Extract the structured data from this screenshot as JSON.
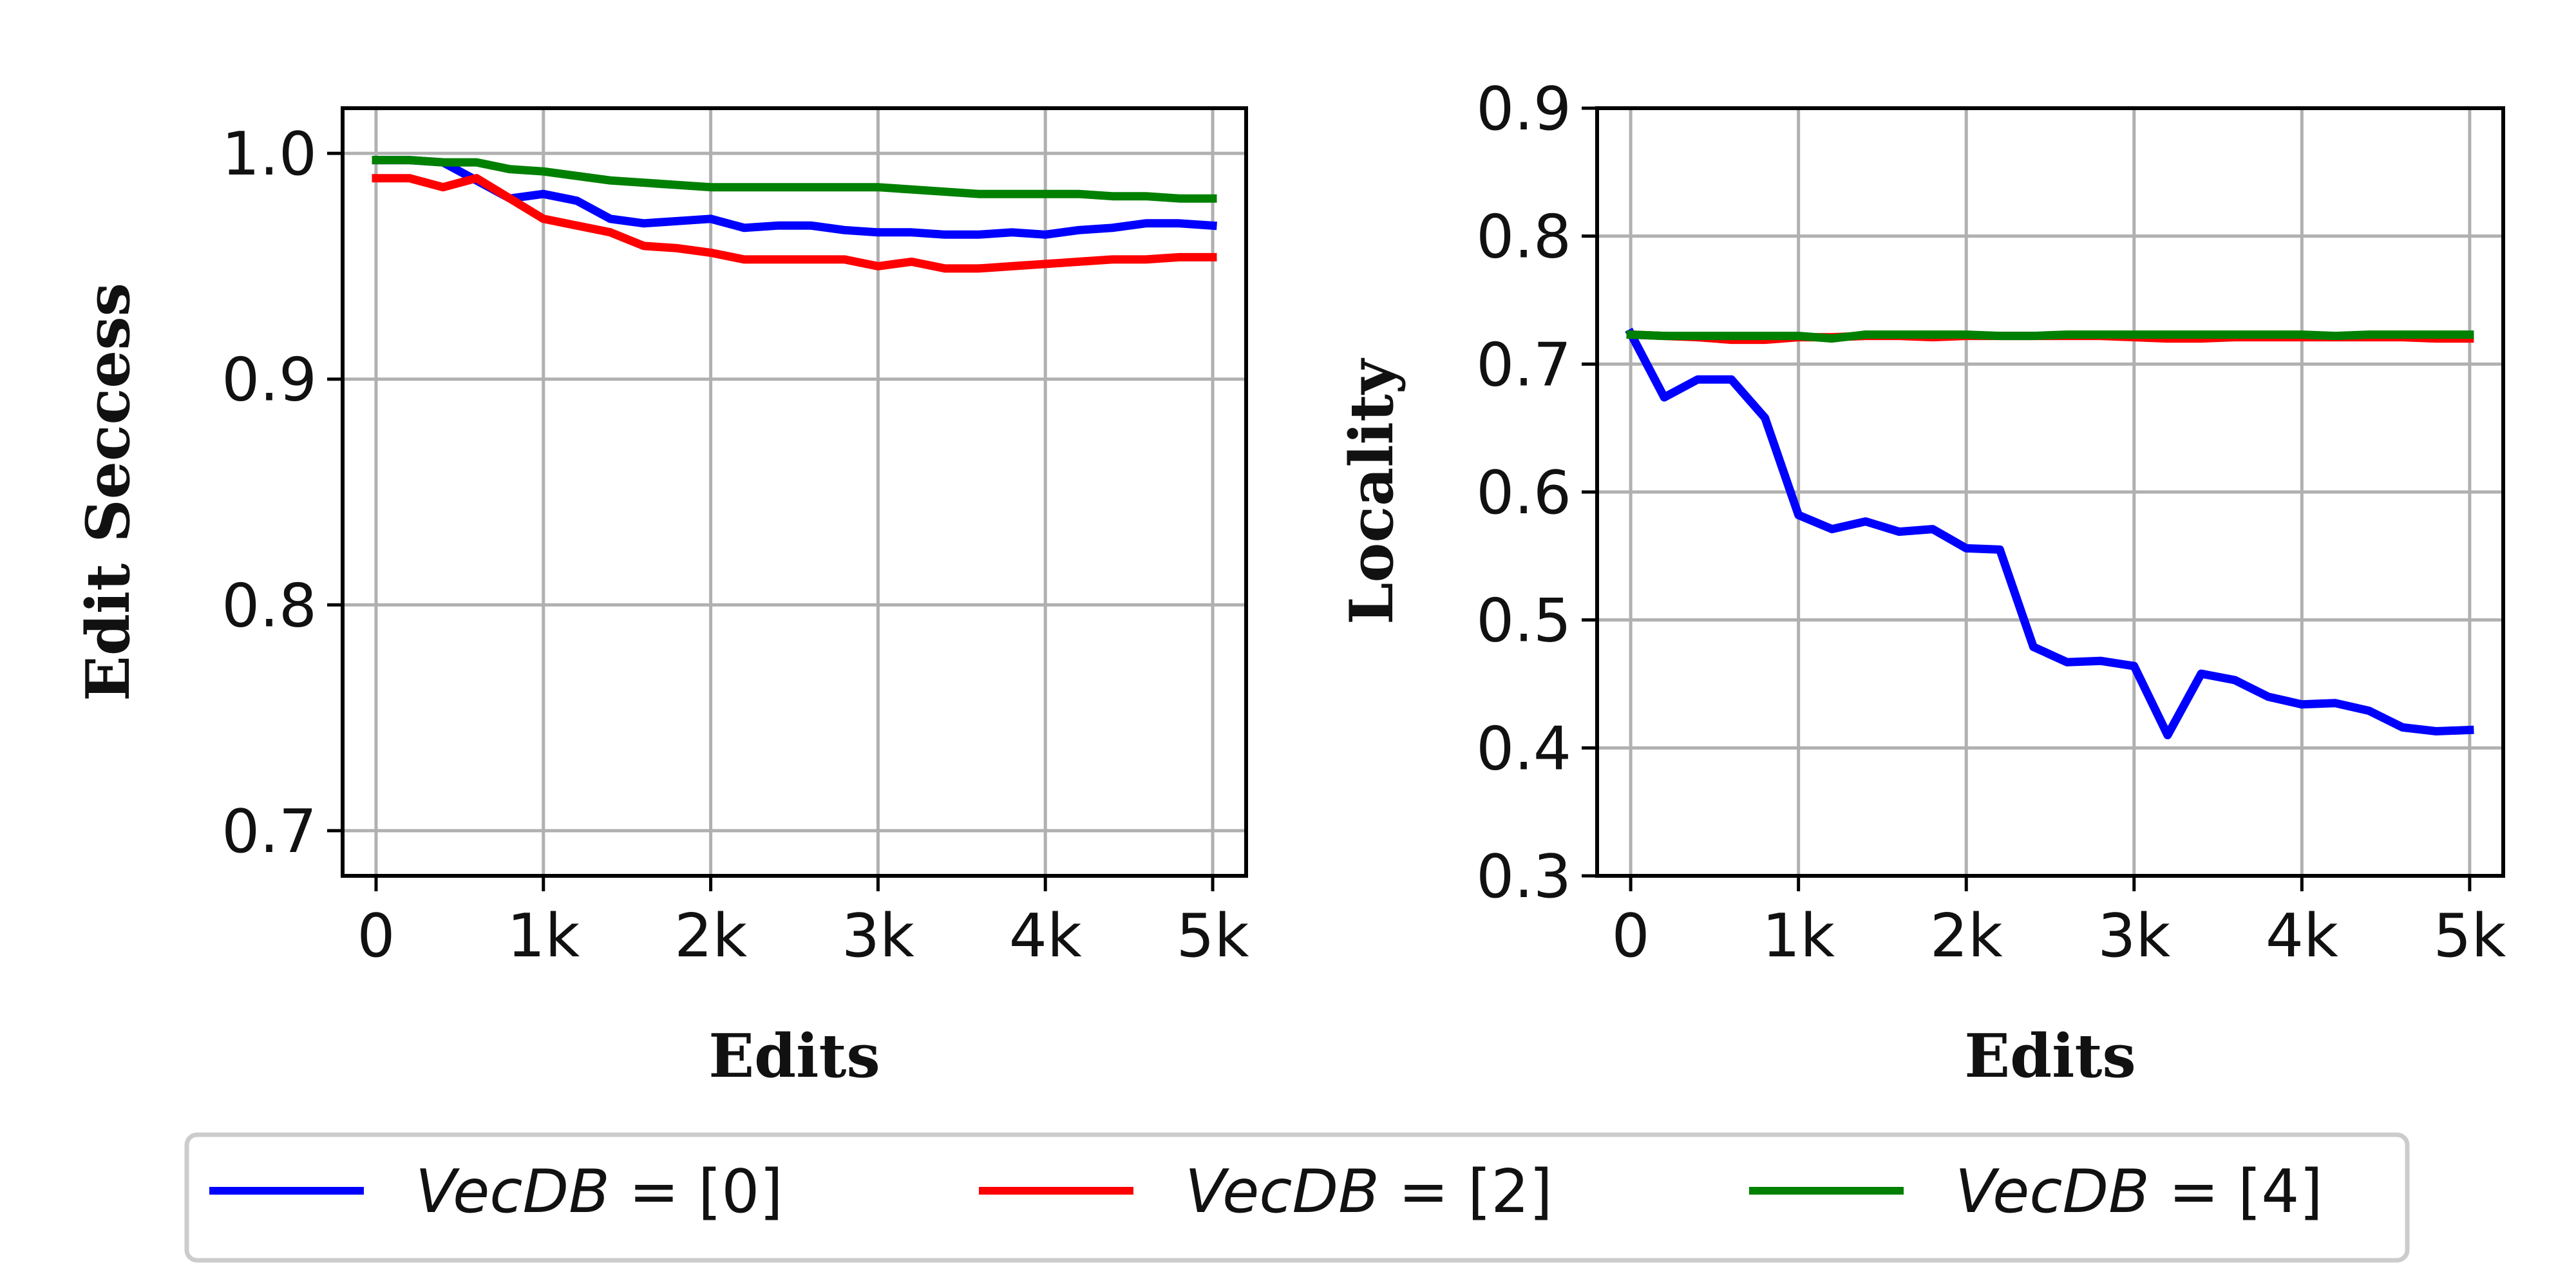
{
  "chart_data": [
    {
      "type": "line",
      "xlabel": "Edits",
      "ylabel": "Edit Seccess",
      "xlim": [
        -200,
        5200
      ],
      "ylim": [
        0.68,
        1.02
      ],
      "grid": true,
      "xticks": [
        0,
        1000,
        2000,
        3000,
        4000,
        5000
      ],
      "xtick_labels": [
        "0",
        "1k",
        "2k",
        "3k",
        "4k",
        "5k"
      ],
      "yticks": [
        0.7,
        0.8,
        0.9,
        1.0
      ],
      "ytick_labels": [
        "0.7",
        "0.8",
        "0.9",
        "1.0"
      ],
      "x": [
        0,
        200,
        400,
        600,
        800,
        1000,
        1200,
        1400,
        1600,
        1800,
        2000,
        2200,
        2400,
        2600,
        2800,
        3000,
        3200,
        3400,
        3600,
        3800,
        4000,
        4200,
        4400,
        4600,
        4800,
        5000
      ],
      "series": [
        {
          "name": "VecDB=[0]",
          "color": "#0000ff",
          "values": [
            0.997,
            0.997,
            0.996,
            0.988,
            0.98,
            0.982,
            0.979,
            0.971,
            0.969,
            0.97,
            0.971,
            0.967,
            0.968,
            0.968,
            0.966,
            0.965,
            0.965,
            0.964,
            0.964,
            0.965,
            0.964,
            0.966,
            0.967,
            0.969,
            0.969,
            0.968
          ]
        },
        {
          "name": "VecDB=[2]",
          "color": "#ff0000",
          "values": [
            0.989,
            0.989,
            0.985,
            0.989,
            0.98,
            0.971,
            0.968,
            0.965,
            0.959,
            0.958,
            0.956,
            0.953,
            0.953,
            0.953,
            0.953,
            0.95,
            0.952,
            0.949,
            0.949,
            0.95,
            0.951,
            0.952,
            0.953,
            0.953,
            0.954,
            0.954
          ]
        },
        {
          "name": "VecDB=[4]",
          "color": "#008000",
          "values": [
            0.997,
            0.997,
            0.996,
            0.996,
            0.993,
            0.992,
            0.99,
            0.988,
            0.987,
            0.986,
            0.985,
            0.985,
            0.985,
            0.985,
            0.985,
            0.985,
            0.984,
            0.983,
            0.982,
            0.982,
            0.982,
            0.982,
            0.981,
            0.981,
            0.98,
            0.98
          ]
        }
      ]
    },
    {
      "type": "line",
      "xlabel": "Edits",
      "ylabel": "Locality",
      "xlim": [
        -200,
        5200
      ],
      "ylim": [
        0.3,
        0.9
      ],
      "grid": true,
      "xticks": [
        0,
        1000,
        2000,
        3000,
        4000,
        5000
      ],
      "xtick_labels": [
        "0",
        "1k",
        "2k",
        "3k",
        "4k",
        "5k"
      ],
      "yticks": [
        0.3,
        0.4,
        0.5,
        0.6,
        0.7,
        0.8,
        0.9
      ],
      "ytick_labels": [
        "0.3",
        "0.4",
        "0.5",
        "0.6",
        "0.7",
        "0.8",
        "0.9"
      ],
      "x": [
        0,
        200,
        400,
        600,
        800,
        1000,
        1200,
        1400,
        1600,
        1800,
        2000,
        2200,
        2400,
        2600,
        2800,
        3000,
        3200,
        3400,
        3600,
        3800,
        4000,
        4200,
        4400,
        4600,
        4800,
        5000
      ],
      "series": [
        {
          "name": "VecDB=[0]",
          "color": "#0000ff",
          "values": [
            0.724,
            0.674,
            0.688,
            0.688,
            0.658,
            0.582,
            0.571,
            0.577,
            0.569,
            0.571,
            0.556,
            0.555,
            0.479,
            0.467,
            0.468,
            0.464,
            0.41,
            0.458,
            0.453,
            0.44,
            0.434,
            0.435,
            0.429,
            0.416,
            0.413,
            0.414
          ]
        },
        {
          "name": "VecDB=[2]",
          "color": "#ff0000",
          "values": [
            0.723,
            0.722,
            0.721,
            0.719,
            0.719,
            0.721,
            0.721,
            0.722,
            0.722,
            0.721,
            0.722,
            0.722,
            0.722,
            0.722,
            0.722,
            0.721,
            0.72,
            0.72,
            0.721,
            0.721,
            0.721,
            0.721,
            0.721,
            0.721,
            0.72,
            0.72
          ]
        },
        {
          "name": "VecDB=[4]",
          "color": "#008000",
          "values": [
            0.723,
            0.722,
            0.722,
            0.722,
            0.722,
            0.722,
            0.72,
            0.723,
            0.723,
            0.723,
            0.723,
            0.722,
            0.722,
            0.723,
            0.723,
            0.723,
            0.723,
            0.723,
            0.723,
            0.723,
            0.723,
            0.722,
            0.723,
            0.723,
            0.723,
            0.723
          ]
        }
      ]
    }
  ],
  "legend": {
    "position": "bottom-center",
    "items": [
      {
        "prefix": "VecDB",
        "suffix": " = [0]",
        "color": "#0000ff"
      },
      {
        "prefix": "VecDB",
        "suffix": " = [2]",
        "color": "#ff0000"
      },
      {
        "prefix": "VecDB",
        "suffix": " = [4]",
        "color": "#008000"
      }
    ]
  }
}
